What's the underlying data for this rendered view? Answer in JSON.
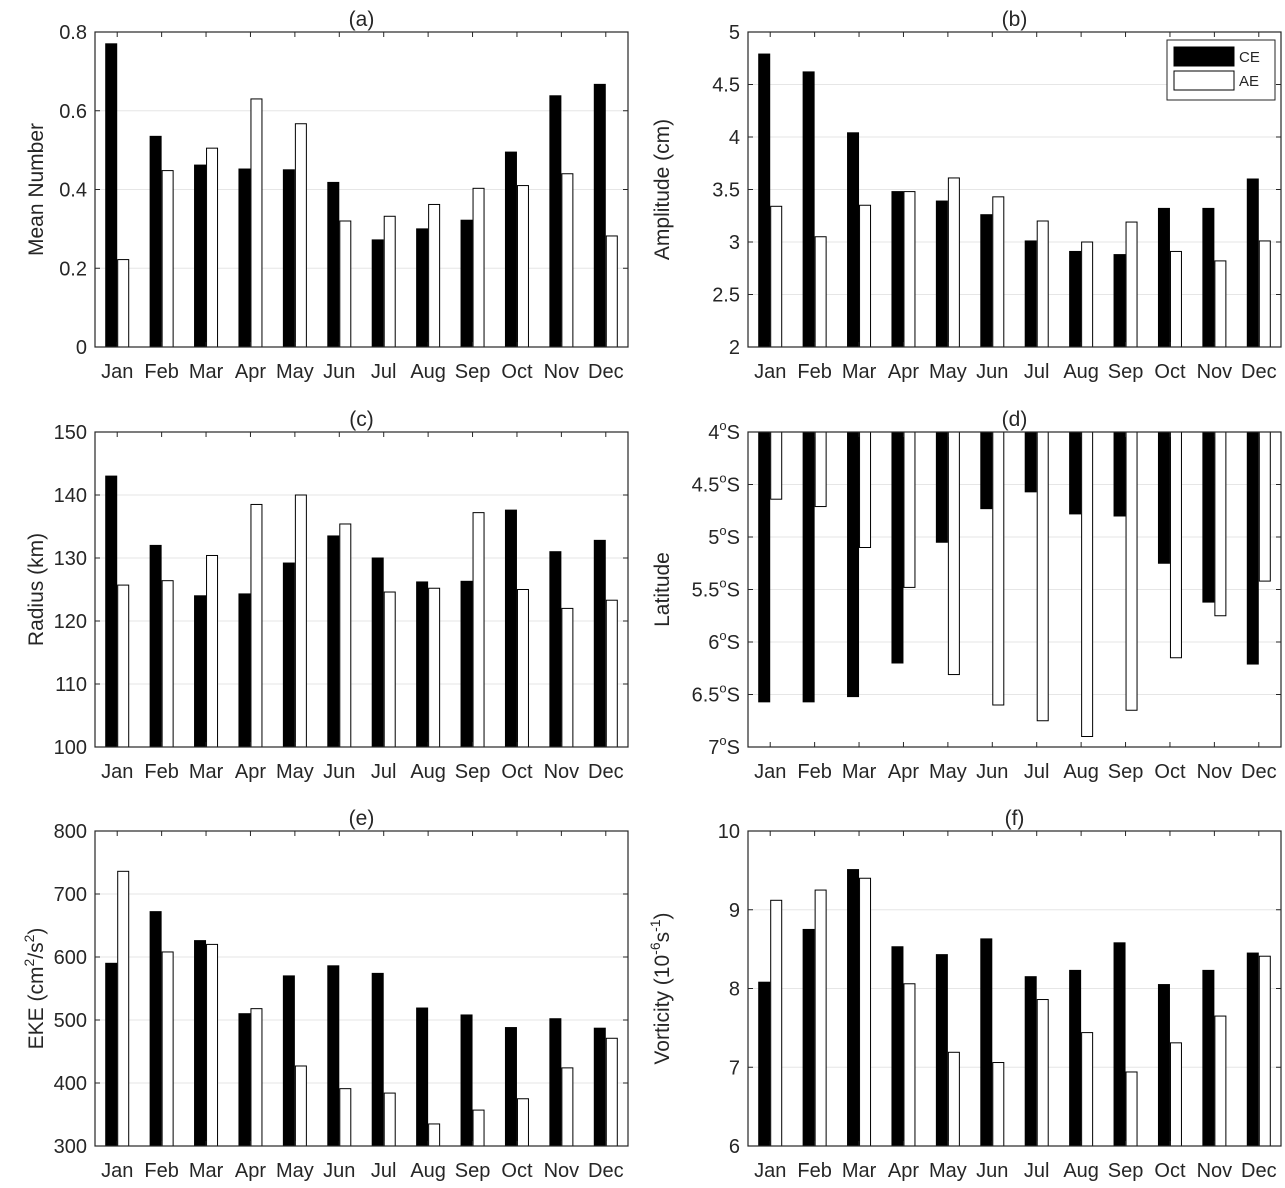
{
  "figure": {
    "legend": {
      "entries": [
        {
          "name": "CE",
          "color": "#000000"
        },
        {
          "name": "AE",
          "color": "#ffffff"
        }
      ]
    }
  },
  "chart_data": [
    {
      "type": "bar",
      "id": "a",
      "title": "(a)",
      "xlabel": "",
      "ylabel": "Mean Number",
      "categories": [
        "Jan",
        "Feb",
        "Mar",
        "Apr",
        "May",
        "Jun",
        "Jul",
        "Aug",
        "Sep",
        "Oct",
        "Nov",
        "Dec"
      ],
      "series": [
        {
          "name": "CE",
          "color": "#000000",
          "values": [
            0.77,
            0.535,
            0.462,
            0.452,
            0.45,
            0.418,
            0.272,
            0.3,
            0.322,
            0.495,
            0.638,
            0.667
          ]
        },
        {
          "name": "AE",
          "color": "#ffffff",
          "values": [
            0.222,
            0.448,
            0.505,
            0.63,
            0.567,
            0.32,
            0.332,
            0.362,
            0.403,
            0.41,
            0.44,
            0.282
          ]
        }
      ],
      "ylim": [
        0,
        0.8
      ],
      "yticks": [
        0,
        0.2,
        0.4,
        0.6,
        0.8
      ],
      "ytick_labels": [
        "0",
        "0.2",
        "0.4",
        "0.6",
        "0.8"
      ],
      "grid": "horizontal"
    },
    {
      "type": "bar",
      "id": "b",
      "title": "(b)",
      "xlabel": "",
      "ylabel": "Amplitude (cm)",
      "categories": [
        "Jan",
        "Feb",
        "Mar",
        "Apr",
        "May",
        "Jun",
        "Jul",
        "Aug",
        "Sep",
        "Oct",
        "Nov",
        "Dec"
      ],
      "series": [
        {
          "name": "CE",
          "color": "#000000",
          "values": [
            4.79,
            4.62,
            4.04,
            3.48,
            3.39,
            3.26,
            3.01,
            2.91,
            2.88,
            3.32,
            3.32,
            3.6
          ]
        },
        {
          "name": "AE",
          "color": "#ffffff",
          "values": [
            3.34,
            3.05,
            3.35,
            3.48,
            3.61,
            3.43,
            3.2,
            3.0,
            3.19,
            2.91,
            2.82,
            3.01
          ]
        }
      ],
      "ylim": [
        2,
        5
      ],
      "yticks": [
        2,
        2.5,
        3,
        3.5,
        4,
        4.5,
        5
      ],
      "ytick_labels": [
        "2",
        "2.5",
        "3",
        "3.5",
        "4",
        "4.5",
        "5"
      ],
      "grid": "horizontal",
      "legend": "top-right"
    },
    {
      "type": "bar",
      "id": "c",
      "title": "(c)",
      "xlabel": "",
      "ylabel": "Radius (km)",
      "categories": [
        "Jan",
        "Feb",
        "Mar",
        "Apr",
        "May",
        "Jun",
        "Jul",
        "Aug",
        "Sep",
        "Oct",
        "Nov",
        "Dec"
      ],
      "series": [
        {
          "name": "CE",
          "color": "#000000",
          "values": [
            143,
            132,
            124,
            124.3,
            129.2,
            133.5,
            130,
            126.2,
            126.3,
            137.6,
            131,
            132.8
          ]
        },
        {
          "name": "AE",
          "color": "#ffffff",
          "values": [
            125.7,
            126.4,
            130.4,
            138.5,
            140,
            135.4,
            124.6,
            125.2,
            137.2,
            125,
            122,
            123.3
          ]
        }
      ],
      "ylim": [
        100,
        150
      ],
      "yticks": [
        100,
        110,
        120,
        130,
        140,
        150
      ],
      "ytick_labels": [
        "100",
        "110",
        "120",
        "130",
        "140",
        "150"
      ],
      "grid": "horizontal"
    },
    {
      "type": "bar",
      "id": "d",
      "title": "(d)",
      "xlabel": "",
      "ylabel": "Latitude",
      "categories": [
        "Jan",
        "Feb",
        "Mar",
        "Apr",
        "May",
        "Jun",
        "Jul",
        "Aug",
        "Sep",
        "Oct",
        "Nov",
        "Dec"
      ],
      "series": [
        {
          "name": "CE",
          "color": "#000000",
          "values": [
            6.57,
            6.57,
            6.52,
            6.2,
            5.05,
            4.73,
            4.57,
            4.78,
            4.8,
            5.25,
            5.62,
            6.21
          ]
        },
        {
          "name": "AE",
          "color": "#ffffff",
          "values": [
            4.64,
            4.71,
            5.1,
            5.48,
            6.31,
            6.6,
            6.75,
            6.9,
            6.65,
            6.15,
            5.75,
            5.42
          ]
        }
      ],
      "ylim": [
        4,
        7
      ],
      "yaxis_reversed": true,
      "bar_base": 4,
      "units": "degrees south",
      "yticks": [
        4,
        4.5,
        5,
        5.5,
        6,
        6.5,
        7
      ],
      "ytick_labels": [
        {
          "num": "4",
          "sup": "o",
          "suffix": "S"
        },
        {
          "num": "4.5",
          "sup": "o",
          "suffix": "S"
        },
        {
          "num": "5",
          "sup": "o",
          "suffix": "S"
        },
        {
          "num": "5.5",
          "sup": "o",
          "suffix": "S"
        },
        {
          "num": "6",
          "sup": "o",
          "suffix": "S"
        },
        {
          "num": "6.5",
          "sup": "o",
          "suffix": "S"
        },
        {
          "num": "7",
          "sup": "o",
          "suffix": "S"
        }
      ],
      "grid": "horizontal"
    },
    {
      "type": "bar",
      "id": "e",
      "title": "(e)",
      "xlabel": "",
      "ylabel": {
        "parts": [
          {
            "t": "EKE (cm"
          },
          {
            "t": "2",
            "sup": true
          },
          {
            "t": "/s"
          },
          {
            "t": "2",
            "sup": true
          },
          {
            "t": ")"
          }
        ]
      },
      "categories": [
        "Jan",
        "Feb",
        "Mar",
        "Apr",
        "May",
        "Jun",
        "Jul",
        "Aug",
        "Sep",
        "Oct",
        "Nov",
        "Dec"
      ],
      "series": [
        {
          "name": "CE",
          "color": "#000000",
          "values": [
            590,
            672,
            626,
            510,
            570,
            586,
            574,
            519,
            508,
            488,
            502,
            487
          ]
        },
        {
          "name": "AE",
          "color": "#ffffff",
          "values": [
            736,
            608,
            620,
            518,
            427,
            391,
            384,
            335,
            357,
            375,
            424,
            471
          ]
        }
      ],
      "ylim": [
        300,
        800
      ],
      "yticks": [
        300,
        400,
        500,
        600,
        700,
        800
      ],
      "ytick_labels": [
        "300",
        "400",
        "500",
        "600",
        "700",
        "800"
      ],
      "grid": "horizontal"
    },
    {
      "type": "bar",
      "id": "f",
      "title": "(f)",
      "xlabel": "",
      "ylabel": {
        "parts": [
          {
            "t": "Vorticity (10"
          },
          {
            "t": "-6",
            "sup": true
          },
          {
            "t": "s"
          },
          {
            "t": "-1",
            "sup": true
          },
          {
            "t": ")"
          }
        ]
      },
      "categories": [
        "Jan",
        "Feb",
        "Mar",
        "Apr",
        "May",
        "Jun",
        "Jul",
        "Aug",
        "Sep",
        "Oct",
        "Nov",
        "Dec"
      ],
      "series": [
        {
          "name": "CE",
          "color": "#000000",
          "values": [
            8.08,
            8.75,
            9.51,
            8.53,
            8.43,
            8.63,
            8.15,
            8.23,
            8.58,
            8.05,
            8.23,
            8.45
          ]
        },
        {
          "name": "AE",
          "color": "#ffffff",
          "values": [
            9.12,
            9.25,
            9.4,
            8.06,
            7.19,
            7.06,
            7.86,
            7.44,
            6.94,
            7.31,
            7.65,
            8.41
          ]
        }
      ],
      "ylim": [
        6,
        10
      ],
      "yticks": [
        6,
        7,
        8,
        9,
        10
      ],
      "ytick_labels": [
        "6",
        "7",
        "8",
        "9",
        "10"
      ],
      "grid": "horizontal"
    }
  ]
}
